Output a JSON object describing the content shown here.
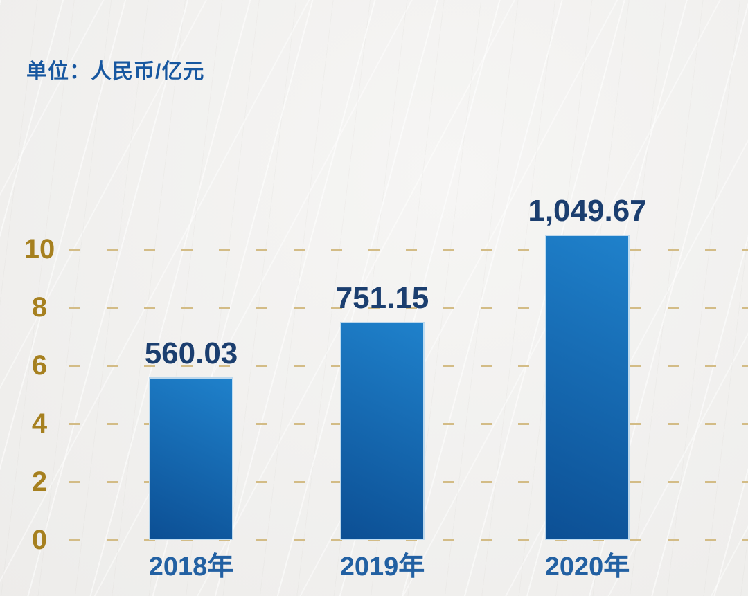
{
  "header": {
    "unit_label": "单位：人民币/亿元"
  },
  "chart_data": {
    "type": "bar",
    "title": "单位：人民币/亿元",
    "categories": [
      "2018年",
      "2019年",
      "2020年"
    ],
    "values": [
      560.03,
      751.15,
      1049.67
    ],
    "value_labels": [
      "560.03",
      "751.15",
      "1,049.67"
    ],
    "yticks": [
      0,
      2,
      4,
      6,
      8,
      10
    ],
    "ylim": [
      0,
      10
    ],
    "grid": "horizontal dashed",
    "legend": "none",
    "colors": {
      "title": "#1757a0",
      "value_label": "#1b3e6f",
      "category_label": "#2260a2",
      "tick_label": "#a6801f",
      "gridline": "#d3bc86",
      "bar_gradient_top": "#1f81cb",
      "bar_gradient_bottom": "#0c4f94",
      "background": "#f1f0ee"
    }
  }
}
